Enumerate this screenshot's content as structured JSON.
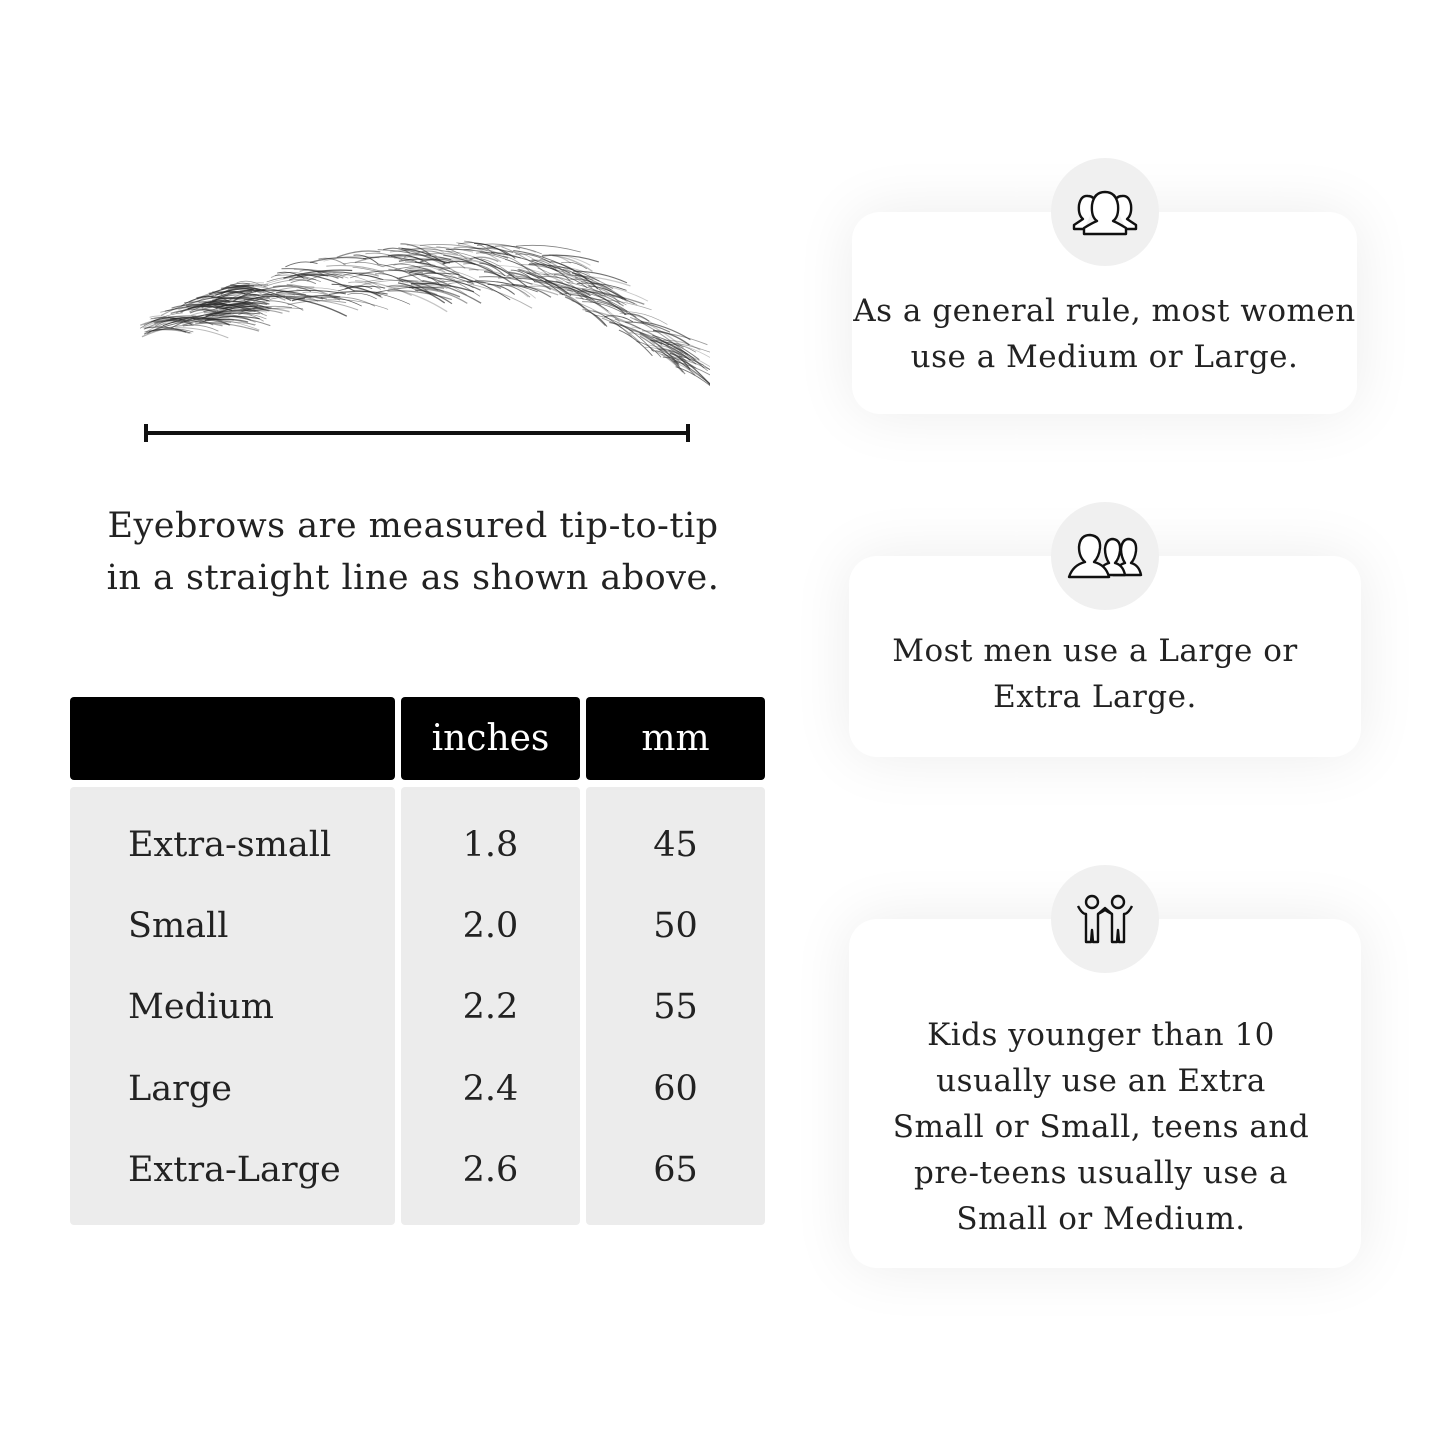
{
  "measurement": {
    "caption_line1": "Eyebrows are measured tip-to-tip",
    "caption_line2": "in a straight line as shown above."
  },
  "size_table": {
    "headers": [
      "",
      "inches",
      "mm"
    ],
    "rows": [
      {
        "size": "Extra-small",
        "inches": "1.8",
        "mm": "45"
      },
      {
        "size": "Small",
        "inches": "2.0",
        "mm": "50"
      },
      {
        "size": "Medium",
        "inches": "2.2",
        "mm": "55"
      },
      {
        "size": "Large",
        "inches": "2.4",
        "mm": "60"
      },
      {
        "size": "Extra-Large",
        "inches": "2.6",
        "mm": "65"
      }
    ]
  },
  "cards": [
    {
      "icon": "women-group-icon",
      "line1": "As a general rule, most women",
      "line2": "use a Medium or Large."
    },
    {
      "icon": "men-group-icon",
      "line1": "Most men use a Large or",
      "line2": "Extra Large."
    },
    {
      "icon": "kids-icon",
      "line1": "Kids younger than 10",
      "line2": "usually use an Extra",
      "line3": "Small or Small, teens and",
      "line4": "pre-teens usually use a",
      "line5": "Small or Medium."
    }
  ],
  "colors": {
    "header_bg": "#000000",
    "cell_bg": "#ececec",
    "icon_circle": "#f0f0f0"
  }
}
